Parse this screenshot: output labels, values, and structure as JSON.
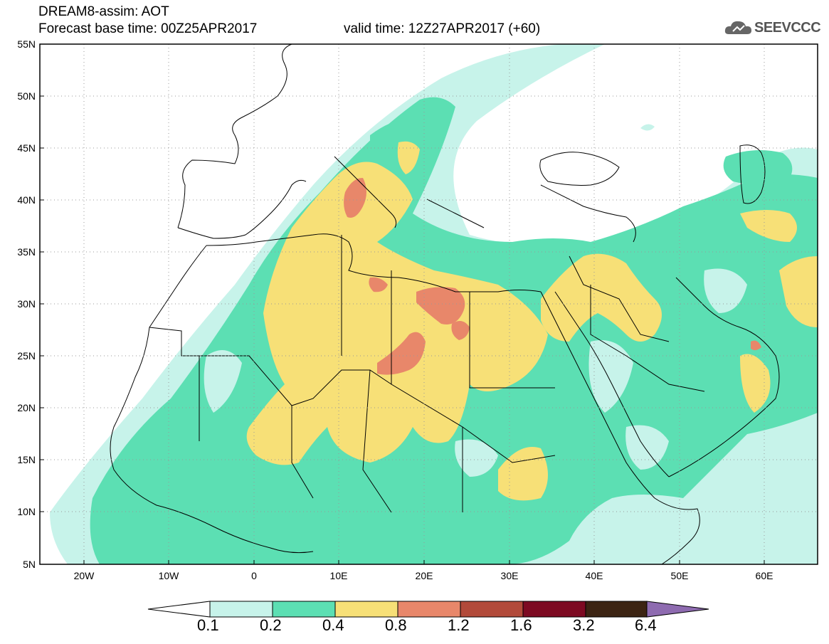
{
  "header": {
    "line1": "DREAM8-assim: AOT",
    "line2": "Forecast base time: 00Z25APR2017",
    "line3": "valid time: 12Z27APR2017 (+60)"
  },
  "logo": {
    "text": "SEEVCCC",
    "icon": "cloud-icon"
  },
  "map": {
    "lat_labels": [
      "55N",
      "50N",
      "45N",
      "40N",
      "35N",
      "30N",
      "25N",
      "20N",
      "15N",
      "10N",
      "5N"
    ],
    "lon_labels": [
      "20W",
      "10W",
      "0",
      "10E",
      "20E",
      "30E",
      "40E",
      "50E",
      "60E"
    ],
    "lat_range": [
      5,
      55
    ],
    "lon_range": [
      -25,
      65
    ],
    "grid": "dotted",
    "colors": {
      "0.1": "#c7f3ea",
      "0.2": "#5cdfb3",
      "0.4": "#f7e077",
      "0.8": "#e8876a",
      "1.2": "#b24a3a",
      "1.6": "#7d0a22",
      "3.2": "#3c2413",
      "6.4": "#8e6bb0"
    }
  },
  "colorbar": {
    "labels": [
      "0.1",
      "0.2",
      "0.4",
      "0.8",
      "1.2",
      "1.6",
      "3.2",
      "6.4"
    ]
  }
}
